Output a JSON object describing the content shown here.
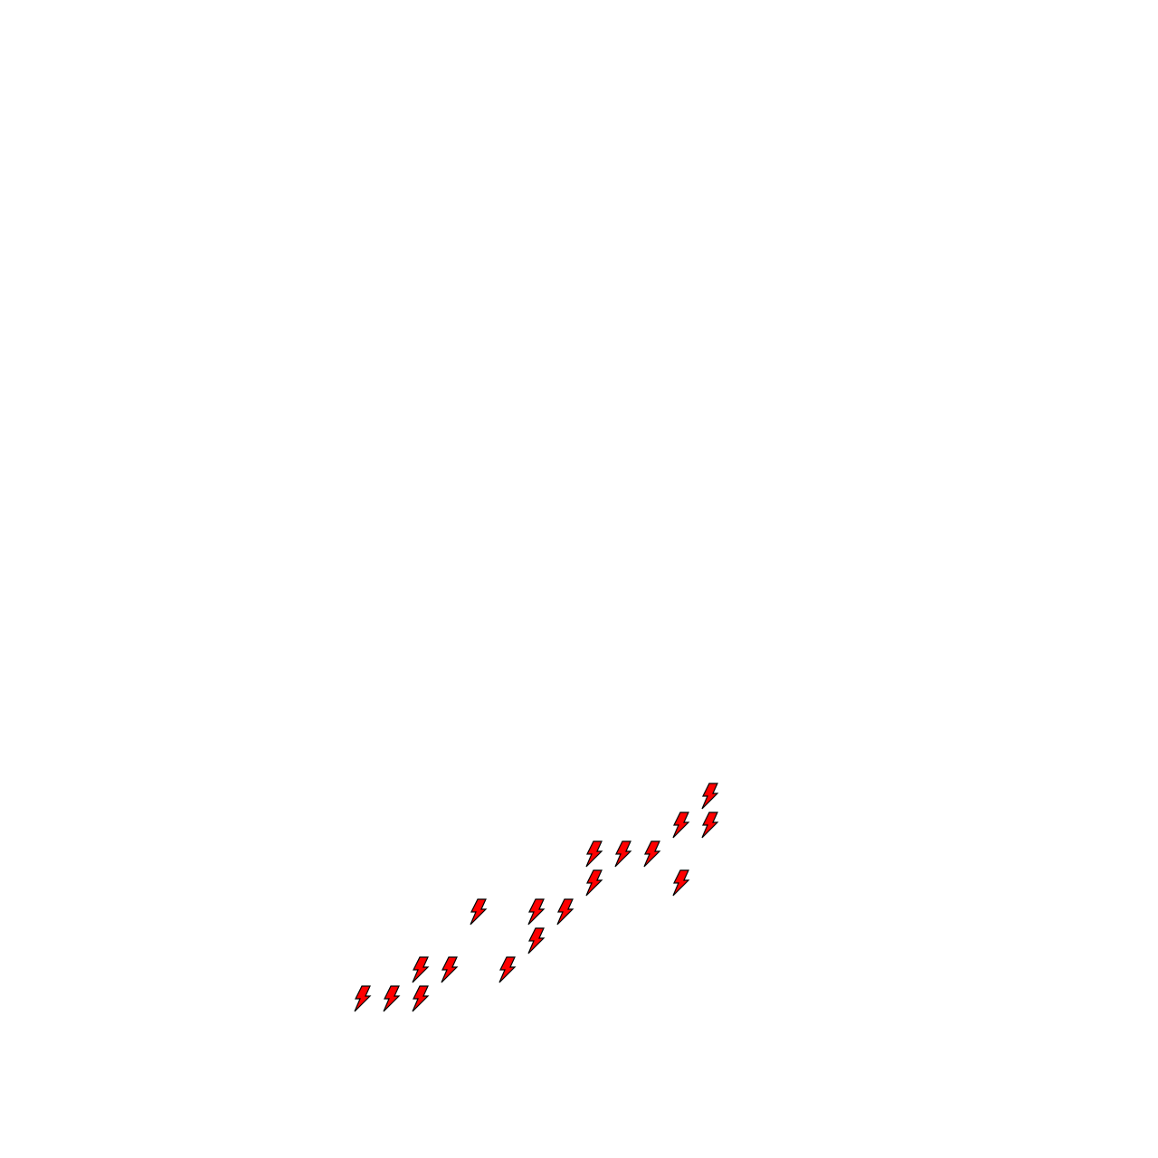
{
  "canvas": {
    "background": "#ffffff",
    "icon": "lightning-bolt-icon",
    "icon_fill": "#ff0000",
    "icon_stroke": "#000000",
    "icon_count": 18
  }
}
